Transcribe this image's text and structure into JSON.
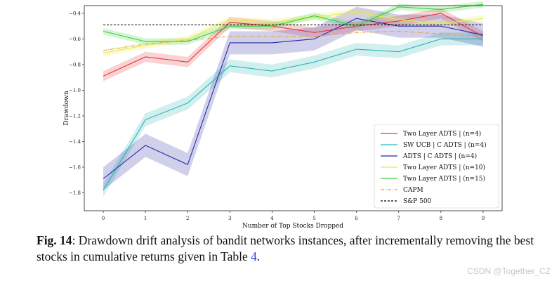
{
  "chart_data": {
    "type": "line",
    "xlabel": "Number of Top Stocks Dropped",
    "ylabel": "Drawdown",
    "xlim": [
      -0.45,
      9.45
    ],
    "ylim": [
      -1.94,
      -0.34
    ],
    "xticks": [
      0,
      1,
      2,
      3,
      4,
      5,
      6,
      7,
      8,
      9
    ],
    "yticks": [
      -1.8,
      -1.6,
      -1.4,
      -1.2,
      -1.0,
      -0.8,
      -0.6,
      -0.4
    ],
    "grid": false,
    "legend_position": "lower-right",
    "x": [
      0,
      1,
      2,
      3,
      4,
      5,
      6,
      7,
      8,
      9
    ],
    "series": [
      {
        "name": "Two Layer ADTS | (n=4)",
        "color": "#e2383a",
        "style": "solid",
        "values": [
          -0.89,
          -0.74,
          -0.78,
          -0.47,
          -0.5,
          -0.55,
          -0.5,
          -0.46,
          -0.4,
          -0.58
        ],
        "band": 0.04
      },
      {
        "name": "SW UCB | C ADTS | (n=4)",
        "color": "#2bb6b3",
        "style": "solid",
        "values": [
          -1.78,
          -1.23,
          -1.1,
          -0.81,
          -0.85,
          -0.78,
          -0.68,
          -0.7,
          -0.6,
          -0.6
        ],
        "band": 0.05
      },
      {
        "name": "ADTS | C ADTS | (n=4)",
        "color": "#2a2aa3",
        "style": "solid",
        "values": [
          -1.69,
          -1.43,
          -1.58,
          -0.63,
          -0.63,
          -0.6,
          -0.44,
          -0.5,
          -0.5,
          -0.57
        ],
        "band": 0.09
      },
      {
        "name": "Two Layer ADTS | (n=10)",
        "color": "#e9e94a",
        "style": "solid",
        "values": [
          -0.71,
          -0.65,
          -0.6,
          -0.45,
          -0.47,
          -0.43,
          -0.39,
          -0.45,
          -0.48,
          -0.44
        ],
        "band": 0.025
      },
      {
        "name": "Two Layer ADTS | (n=15)",
        "color": "#3ccc3c",
        "style": "solid",
        "values": [
          -0.54,
          -0.62,
          -0.62,
          -0.5,
          -0.5,
          -0.42,
          -0.5,
          -0.35,
          -0.37,
          -0.33
        ],
        "band": 0.025
      },
      {
        "name": "CAPM",
        "color": "#e5a23a",
        "style": "dashdot",
        "values": [
          -0.69,
          -0.64,
          -0.61,
          -0.58,
          -0.58,
          -0.58,
          -0.55,
          -0.54,
          -0.56,
          -0.58
        ],
        "band": 0
      },
      {
        "name": "S&P 500",
        "color": "#000000",
        "style": "dashed",
        "values": [
          -0.49,
          -0.49,
          -0.49,
          -0.49,
          -0.49,
          -0.49,
          -0.49,
          -0.49,
          -0.49,
          -0.49
        ],
        "band": 0
      }
    ]
  },
  "caption": {
    "label": "Fig. 14",
    "text_before": ": Drawdown drift analysis of bandit networks instances, after incrementally removing the best stocks in cumulative returns given in Table ",
    "table_ref": "4",
    "text_after": "."
  },
  "watermark": "CSDN @Together_CZ"
}
